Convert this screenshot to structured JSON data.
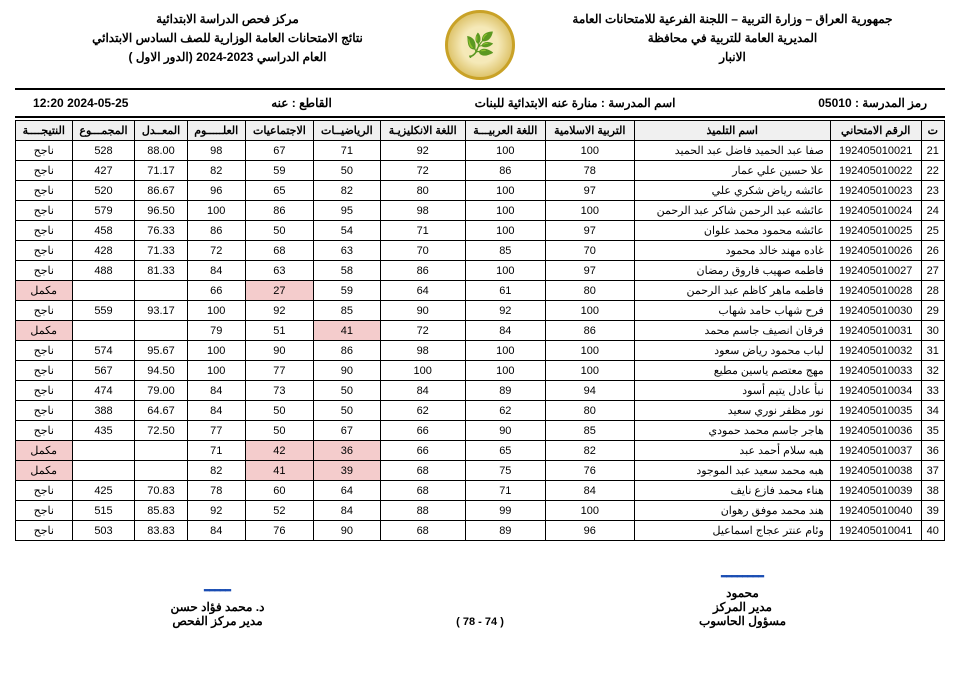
{
  "header": {
    "right_lines": [
      "جمهورية العراق – وزارة التربية – اللجنة الفرعية للامتحانات العامة",
      "المديرية العامة للتربية في محافظة",
      "الانبار"
    ],
    "left_lines": [
      "مركز فحص الدراسة الابتدائية",
      "نتائج الامتحانات العامة الوزارية للصف السادس الابتدائي",
      "العام الدراسي 2023-2024 (الدور الاول )"
    ]
  },
  "info": {
    "school_code_label": "رمز المدرسة :",
    "school_code": "05010",
    "school_name_label": "اسم المدرسة :",
    "school_name": "منارة عنه الابتدائية للبنات",
    "district_label": "القاطع :",
    "district": "عنه",
    "datetime": "2024-05-25 12:20"
  },
  "columns": [
    "ت",
    "الرقم الامتحاني",
    "اسم التلميذ",
    "التربية الاسلامية",
    "اللغة العربيـــة",
    "اللغة الانكليزيـة",
    "الرياضيــات",
    "الاجتماعيات",
    "العلـــــوم",
    "المعــدل",
    "المجمـــوع",
    "النتيجــــة"
  ],
  "rows": [
    {
      "n": 21,
      "exam": "192405010021",
      "name": "صفا عبد الحميد فاضل عبد الحميد",
      "s": [
        100,
        100,
        92,
        71,
        67,
        98
      ],
      "avg": "88.00",
      "tot": 528,
      "res": "ناجح",
      "fail": false,
      "fcells": []
    },
    {
      "n": 22,
      "exam": "192405010022",
      "name": "علا حسين علي عمار",
      "s": [
        78,
        86,
        72,
        50,
        59,
        82
      ],
      "avg": "71.17",
      "tot": 427,
      "res": "ناجح",
      "fail": false,
      "fcells": []
    },
    {
      "n": 23,
      "exam": "192405010023",
      "name": "عائشه رياض شكري علي",
      "s": [
        97,
        100,
        80,
        82,
        65,
        96
      ],
      "avg": "86.67",
      "tot": 520,
      "res": "ناجح",
      "fail": false,
      "fcells": []
    },
    {
      "n": 24,
      "exam": "192405010024",
      "name": "عائشه عبد الرحمن شاكر عبد الرحمن",
      "s": [
        100,
        100,
        98,
        95,
        86,
        100
      ],
      "avg": "96.50",
      "tot": 579,
      "res": "ناجح",
      "fail": false,
      "fcells": []
    },
    {
      "n": 25,
      "exam": "192405010025",
      "name": "عائشه محمود محمد علوان",
      "s": [
        97,
        100,
        71,
        54,
        50,
        86
      ],
      "avg": "76.33",
      "tot": 458,
      "res": "ناجح",
      "fail": false,
      "fcells": []
    },
    {
      "n": 26,
      "exam": "192405010026",
      "name": "غاده مهند خالد محمود",
      "s": [
        70,
        85,
        70,
        63,
        68,
        72
      ],
      "avg": "71.33",
      "tot": 428,
      "res": "ناجح",
      "fail": false,
      "fcells": []
    },
    {
      "n": 27,
      "exam": "192405010027",
      "name": "فاطمه صهيب فاروق رمضان",
      "s": [
        97,
        100,
        86,
        58,
        63,
        84
      ],
      "avg": "81.33",
      "tot": 488,
      "res": "ناجح",
      "fail": false,
      "fcells": []
    },
    {
      "n": 28,
      "exam": "192405010028",
      "name": "فاطمه ماهر كاظم عبد الرحمن",
      "s": [
        80,
        61,
        64,
        59,
        27,
        66
      ],
      "avg": "",
      "tot": "",
      "res": "مكمل",
      "fail": true,
      "fcells": [
        4
      ]
    },
    {
      "n": 29,
      "exam": "192405010030",
      "name": "فرح شهاب حامد شهاب",
      "s": [
        100,
        92,
        90,
        85,
        92,
        100
      ],
      "avg": "93.17",
      "tot": 559,
      "res": "ناجح",
      "fail": false,
      "fcells": []
    },
    {
      "n": 30,
      "exam": "192405010031",
      "name": "فرقان انصيف جاسم محمد",
      "s": [
        86,
        84,
        72,
        41,
        51,
        79
      ],
      "avg": "",
      "tot": "",
      "res": "مكمل",
      "fail": true,
      "fcells": [
        3
      ]
    },
    {
      "n": 31,
      "exam": "192405010032",
      "name": "لباب محمود رياض سعود",
      "s": [
        100,
        100,
        98,
        86,
        90,
        100
      ],
      "avg": "95.67",
      "tot": 574,
      "res": "ناجح",
      "fail": false,
      "fcells": []
    },
    {
      "n": 32,
      "exam": "192405010033",
      "name": "مهج معتصم ياسين مطيع",
      "s": [
        100,
        100,
        100,
        90,
        77,
        100
      ],
      "avg": "94.50",
      "tot": 567,
      "res": "ناجح",
      "fail": false,
      "fcells": []
    },
    {
      "n": 33,
      "exam": "192405010034",
      "name": "نبأ عادل يتيم أسود",
      "s": [
        94,
        89,
        84,
        50,
        73,
        84
      ],
      "avg": "79.00",
      "tot": 474,
      "res": "ناجح",
      "fail": false,
      "fcells": []
    },
    {
      "n": 34,
      "exam": "192405010035",
      "name": "نور مظفر نوري سعيد",
      "s": [
        80,
        62,
        62,
        50,
        50,
        84
      ],
      "avg": "64.67",
      "tot": 388,
      "res": "ناجح",
      "fail": false,
      "fcells": []
    },
    {
      "n": 35,
      "exam": "192405010036",
      "name": "هاجر جاسم محمد حمودي",
      "s": [
        85,
        90,
        66,
        67,
        50,
        77
      ],
      "avg": "72.50",
      "tot": 435,
      "res": "ناجح",
      "fail": false,
      "fcells": []
    },
    {
      "n": 36,
      "exam": "192405010037",
      "name": "هبه سلام أحمد عبد",
      "s": [
        82,
        65,
        66,
        36,
        42,
        71
      ],
      "avg": "",
      "tot": "",
      "res": "مكمل",
      "fail": true,
      "fcells": [
        3,
        4
      ]
    },
    {
      "n": 37,
      "exam": "192405010038",
      "name": "هبه محمد سعيد عبد الموجود",
      "s": [
        76,
        75,
        68,
        39,
        41,
        82
      ],
      "avg": "",
      "tot": "",
      "res": "مكمل",
      "fail": true,
      "fcells": [
        3,
        4
      ]
    },
    {
      "n": 38,
      "exam": "192405010039",
      "name": "هناء محمد فازع نايف",
      "s": [
        84,
        71,
        68,
        64,
        60,
        78
      ],
      "avg": "70.83",
      "tot": 425,
      "res": "ناجح",
      "fail": false,
      "fcells": []
    },
    {
      "n": 39,
      "exam": "192405010040",
      "name": "هند محمد موفق رهوان",
      "s": [
        100,
        99,
        88,
        84,
        52,
        92
      ],
      "avg": "85.83",
      "tot": 515,
      "res": "ناجح",
      "fail": false,
      "fcells": []
    },
    {
      "n": 40,
      "exam": "192405010041",
      "name": "وئام عنتر عجاج اسماعيل",
      "s": [
        96,
        89,
        68,
        90,
        76,
        84
      ],
      "avg": "83.83",
      "tot": 503,
      "res": "ناجح",
      "fail": false,
      "fcells": []
    }
  ],
  "footer": {
    "page": "( 74 - 78 )",
    "right_name": "محمود",
    "right_title1": "مدير المركز",
    "right_title2": "مسؤول الحاسوب",
    "left_name": "د. محمد فؤاد حسن",
    "left_title": "مدير مركز الفحص"
  },
  "colors": {
    "fail_bg": "#f4cccc",
    "header_bg": "#f0f0f0",
    "border": "#000000"
  }
}
